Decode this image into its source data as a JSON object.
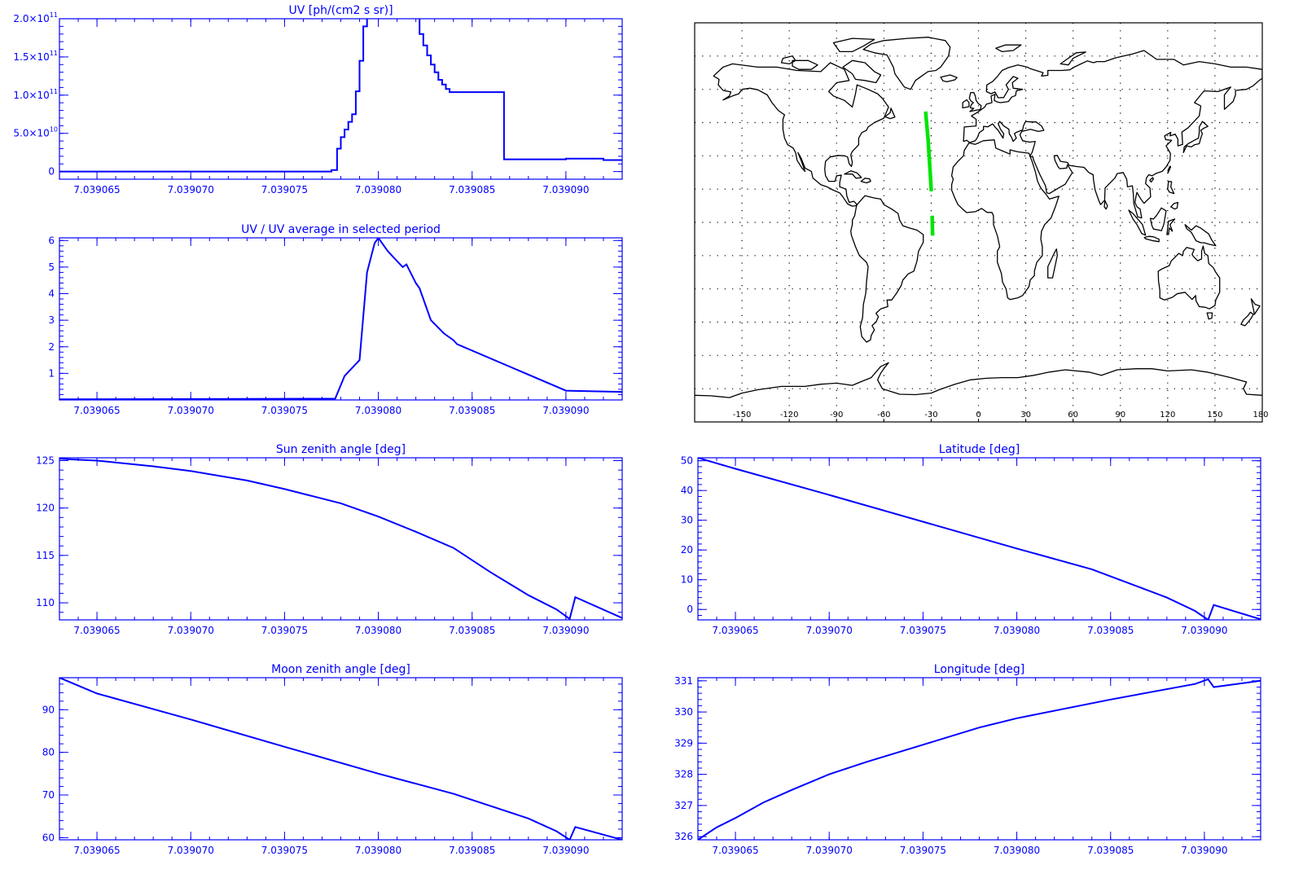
{
  "colors": {
    "axis": "#0000FF",
    "line": "#0000FF",
    "track": "#00E600",
    "map": "#000000"
  },
  "chart_data": [
    {
      "id": "uv",
      "type": "line",
      "step": true,
      "title": "UV [ph/(cm2 s sr)]",
      "xlabel": "",
      "ylabel": "",
      "xlim": [
        7.039063,
        7.039093
      ],
      "ylim": [
        -10000000000.0,
        200000000000.0
      ],
      "xticks": [
        7.039065,
        7.03907,
        7.039075,
        7.03908,
        7.039085,
        7.03909
      ],
      "xtick_labels": [
        "7.039065",
        "7.039070",
        "7.039075",
        "7.039080",
        "7.039085",
        "7.039090"
      ],
      "yticks": [
        0,
        50000000000.0,
        100000000000.0,
        150000000000.0,
        200000000000.0
      ],
      "ytick_labels": [
        {
          "mant": "0",
          "exp": ""
        },
        {
          "mant": "5.0×10",
          "exp": "10"
        },
        {
          "mant": "1.0×10",
          "exp": "11"
        },
        {
          "mant": "1.5×10",
          "exp": "11"
        },
        {
          "mant": "2.0×10",
          "exp": "11"
        }
      ],
      "grid": false,
      "series": [
        {
          "x": [
            7.039063,
            7.0390775,
            7.0390778,
            7.039078,
            7.0390782,
            7.0390784,
            7.0390786,
            7.0390788,
            7.039079,
            7.0390792,
            7.0390794,
            7.0390796,
            7.0390822,
            7.0390824,
            7.0390826,
            7.0390828,
            7.039083,
            7.0390832,
            7.0390834,
            7.0390836,
            7.0390838,
            7.039084,
            7.0390867,
            7.03909,
            7.039092,
            7.039093
          ],
          "y": [
            0,
            2000000000.0,
            30000000000.0,
            45000000000.0,
            55000000000.0,
            65000000000.0,
            75000000000.0,
            105000000000.0,
            145000000000.0,
            190000000000.0,
            205000000000.0,
            210000000000.0,
            180000000000.0,
            165000000000.0,
            152000000000.0,
            140000000000.0,
            130000000000.0,
            120000000000.0,
            114000000000.0,
            108000000000.0,
            104000000000.0,
            104000000000.0,
            16000000000.0,
            17000000000.0,
            15000000000.0,
            15000000000.0
          ]
        }
      ]
    },
    {
      "id": "uvratio",
      "type": "line",
      "title": "UV / UV average in selected period",
      "xlabel": "",
      "ylabel": "",
      "xlim": [
        7.039063,
        7.039093
      ],
      "ylim": [
        0,
        6.1
      ],
      "xticks": [
        7.039065,
        7.03907,
        7.039075,
        7.03908,
        7.039085,
        7.03909
      ],
      "xtick_labels": [
        "7.039065",
        "7.039070",
        "7.039075",
        "7.039080",
        "7.039085",
        "7.039090"
      ],
      "yticks": [
        1,
        2,
        3,
        4,
        5,
        6
      ],
      "ytick_labels": [
        {
          "mant": "1",
          "exp": ""
        },
        {
          "mant": "2",
          "exp": ""
        },
        {
          "mant": "3",
          "exp": ""
        },
        {
          "mant": "4",
          "exp": ""
        },
        {
          "mant": "5",
          "exp": ""
        },
        {
          "mant": "6",
          "exp": ""
        }
      ],
      "grid": false,
      "series": [
        {
          "x": [
            7.039063,
            7.0390777,
            7.0390782,
            7.039079,
            7.0390794,
            7.0390798,
            7.03908,
            7.0390805,
            7.0390813,
            7.0390815,
            7.039082,
            7.0390822,
            7.0390828,
            7.0390835,
            7.039084,
            7.0390842,
            7.03909,
            7.039093
          ],
          "y": [
            0.02,
            0.05,
            0.9,
            1.5,
            4.8,
            5.9,
            6.1,
            5.6,
            5.0,
            5.1,
            4.4,
            4.2,
            3.0,
            2.5,
            2.25,
            2.1,
            0.35,
            0.3
          ]
        }
      ]
    },
    {
      "id": "sza",
      "type": "line",
      "title": "Sun zenith angle [deg]",
      "xlabel": "",
      "ylabel": "",
      "xlim": [
        7.039063,
        7.039093
      ],
      "ylim": [
        108.2,
        125.3
      ],
      "xticks": [
        7.039065,
        7.03907,
        7.039075,
        7.03908,
        7.039085,
        7.03909
      ],
      "xtick_labels": [
        "7.039065",
        "7.039070",
        "7.039075",
        "7.039080",
        "7.039085",
        "7.039090"
      ],
      "yticks": [
        110,
        115,
        120,
        125
      ],
      "ytick_labels": [
        {
          "mant": "110",
          "exp": ""
        },
        {
          "mant": "115",
          "exp": ""
        },
        {
          "mant": "120",
          "exp": ""
        },
        {
          "mant": "125",
          "exp": ""
        }
      ],
      "grid": false,
      "series": [
        {
          "x": [
            7.039063,
            7.039065,
            7.039068,
            7.03907,
            7.039073,
            7.039075,
            7.039078,
            7.03908,
            7.039082,
            7.039084,
            7.039086,
            7.039088,
            7.0390895,
            7.0390902,
            7.0390905,
            7.039093
          ],
          "y": [
            125.2,
            125.0,
            124.4,
            123.9,
            122.9,
            122.0,
            120.5,
            119.1,
            117.5,
            115.8,
            113.2,
            110.8,
            109.3,
            108.3,
            110.6,
            108.4
          ]
        }
      ]
    },
    {
      "id": "mza",
      "type": "line",
      "title": "Moon zenith angle [deg]",
      "xlabel": "",
      "ylabel": "",
      "xlim": [
        7.039063,
        7.039093
      ],
      "ylim": [
        59.5,
        97.5
      ],
      "xticks": [
        7.039065,
        7.03907,
        7.039075,
        7.03908,
        7.039085,
        7.03909
      ],
      "xtick_labels": [
        "7.039065",
        "7.039070",
        "7.039075",
        "7.039080",
        "7.039085",
        "7.039090"
      ],
      "yticks": [
        60,
        70,
        80,
        90
      ],
      "ytick_labels": [
        {
          "mant": "60",
          "exp": ""
        },
        {
          "mant": "70",
          "exp": ""
        },
        {
          "mant": "80",
          "exp": ""
        },
        {
          "mant": "90",
          "exp": ""
        }
      ],
      "grid": false,
      "series": [
        {
          "x": [
            7.039063,
            7.039065,
            7.03907,
            7.039075,
            7.03908,
            7.039084,
            7.039088,
            7.0390895,
            7.0390902,
            7.0390905,
            7.039093
          ],
          "y": [
            97.5,
            93.8,
            87.7,
            81.3,
            75.0,
            70.3,
            64.5,
            61.5,
            59.5,
            62.5,
            59.5
          ]
        }
      ]
    },
    {
      "id": "lat",
      "type": "line",
      "title": "Latitude [deg]",
      "xlabel": "",
      "ylabel": "",
      "xlim": [
        7.039063,
        7.039093
      ],
      "ylim": [
        -3.5,
        51
      ],
      "xticks": [
        7.039065,
        7.03907,
        7.039075,
        7.03908,
        7.039085,
        7.03909
      ],
      "xtick_labels": [
        "7.039065",
        "7.039070",
        "7.039075",
        "7.039080",
        "7.039085",
        "7.039090"
      ],
      "yticks": [
        0,
        10,
        20,
        30,
        40,
        50
      ],
      "ytick_labels": [
        {
          "mant": "0",
          "exp": ""
        },
        {
          "mant": "10",
          "exp": ""
        },
        {
          "mant": "20",
          "exp": ""
        },
        {
          "mant": "30",
          "exp": ""
        },
        {
          "mant": "40",
          "exp": ""
        },
        {
          "mant": "50",
          "exp": ""
        }
      ],
      "grid": false,
      "series": [
        {
          "x": [
            7.039063,
            7.039065,
            7.03907,
            7.039075,
            7.03908,
            7.039084,
            7.039088,
            7.0390895,
            7.0390902,
            7.0390905,
            7.039093
          ],
          "y": [
            51,
            47.3,
            38.5,
            29.5,
            20.5,
            13.5,
            4.0,
            -0.5,
            -3.5,
            1.5,
            -3.3
          ]
        }
      ]
    },
    {
      "id": "lon",
      "type": "line",
      "title": "Longitude [deg]",
      "xlabel": "",
      "ylabel": "",
      "xlim": [
        7.039063,
        7.039093
      ],
      "ylim": [
        325.9,
        331.1
      ],
      "xticks": [
        7.039065,
        7.03907,
        7.039075,
        7.03908,
        7.039085,
        7.03909
      ],
      "xtick_labels": [
        "7.039065",
        "7.039070",
        "7.039075",
        "7.039080",
        "7.039085",
        "7.039090"
      ],
      "yticks": [
        326,
        327,
        328,
        329,
        330,
        331
      ],
      "ytick_labels": [
        {
          "mant": "326",
          "exp": ""
        },
        {
          "mant": "327",
          "exp": ""
        },
        {
          "mant": "328",
          "exp": ""
        },
        {
          "mant": "329",
          "exp": ""
        },
        {
          "mant": "330",
          "exp": ""
        },
        {
          "mant": "331",
          "exp": ""
        }
      ],
      "grid": false,
      "series": [
        {
          "x": [
            7.039063,
            7.039064,
            7.039065,
            7.0390665,
            7.039068,
            7.03907,
            7.039072,
            7.039075,
            7.039078,
            7.03908,
            7.039085,
            7.0390895,
            7.0390902,
            7.0390905,
            7.039093
          ],
          "y": [
            325.9,
            326.3,
            326.6,
            327.1,
            327.5,
            328.0,
            328.4,
            328.95,
            329.5,
            329.8,
            330.4,
            330.9,
            331.05,
            330.8,
            331.0
          ]
        }
      ]
    },
    {
      "id": "map",
      "type": "map",
      "title": "",
      "lonlim": [
        -180,
        180
      ],
      "latlim": [
        -90,
        90
      ],
      "lon_ticks": [
        -150,
        -120,
        -90,
        -60,
        -30,
        0,
        30,
        60,
        90,
        120,
        150,
        180
      ],
      "lon_tick_labels": [
        "-150",
        "-120",
        "-90",
        "-60",
        "-30",
        "0",
        "30",
        "60",
        "90",
        "120",
        "150",
        "180"
      ],
      "lat_grid": [
        -75,
        -60,
        -45,
        -30,
        -15,
        0,
        15,
        30,
        45,
        60,
        75
      ],
      "grid": true,
      "track": [
        {
          "lon": [
            -33.5,
            -32.8,
            -32.0,
            -31.3,
            -30.6,
            -29.9
          ],
          "lat": [
            50,
            44,
            38,
            30,
            22,
            14
          ]
        },
        {
          "lon": [
            -29.4,
            -29.1
          ],
          "lat": [
            3,
            -6
          ]
        }
      ]
    }
  ]
}
